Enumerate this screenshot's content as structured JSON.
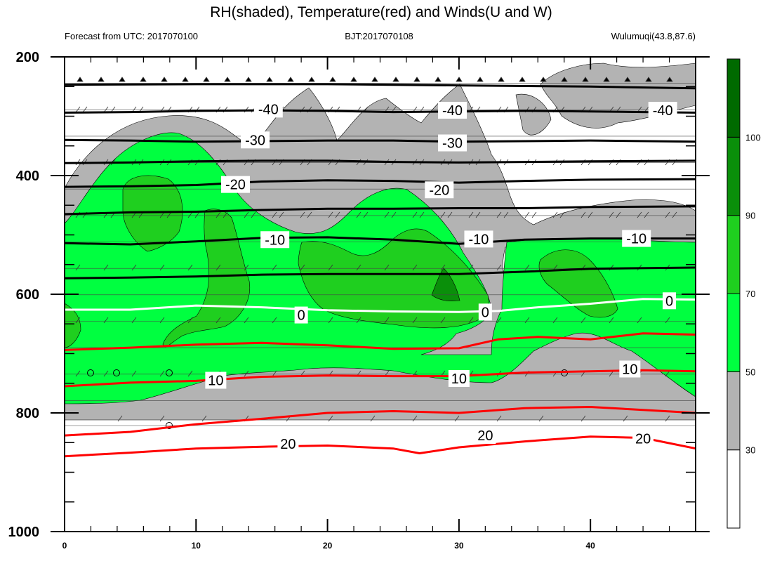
{
  "title": "RH(shaded), Temperature(red) and Winds(U and W)",
  "subtitle_left": "Forecast from UTC: 2017070100",
  "subtitle_center": "BJT:2017070108",
  "subtitle_right": "Wulumuqi(43.8,87.6)",
  "chart_data": {
    "type": "contour",
    "x_axis": {
      "min": 0,
      "max": 48,
      "ticks": [
        0,
        10,
        20,
        30,
        40
      ],
      "label": ""
    },
    "y_axis": {
      "min": 200,
      "max": 1000,
      "ticks": [
        200,
        400,
        600,
        800,
        1000
      ],
      "inverted": true,
      "label": ""
    },
    "colorbar": {
      "levels": [
        30,
        50,
        70,
        90,
        100
      ],
      "colors": [
        "#ffffff",
        "#b3b3b3",
        "#00ff40",
        "#1fcf1f",
        "#0a8f0a",
        "#006a00"
      ],
      "tick_labels": [
        "30",
        "50",
        "70",
        "90",
        "100"
      ]
    },
    "temperature_contours": [
      {
        "value": -40,
        "color": "#000000",
        "points": [
          [
            0,
            247
          ],
          [
            10,
            246
          ],
          [
            20,
            246
          ],
          [
            30,
            248
          ],
          [
            40,
            250
          ],
          [
            48,
            253
          ]
        ]
      },
      {
        "value": -40,
        "color": "#000000",
        "points": [
          [
            0,
            294
          ],
          [
            5,
            293
          ],
          [
            10,
            291
          ],
          [
            15,
            290
          ],
          [
            20,
            291
          ],
          [
            25,
            293
          ],
          [
            30,
            292
          ],
          [
            35,
            291
          ],
          [
            40,
            292
          ],
          [
            44,
            293
          ],
          [
            48,
            294
          ]
        ]
      },
      {
        "value": -30,
        "color": "#000000",
        "points": [
          [
            0,
            340
          ],
          [
            5,
            341
          ],
          [
            10,
            343
          ],
          [
            15,
            342
          ],
          [
            20,
            341
          ],
          [
            25,
            341
          ],
          [
            30,
            343
          ],
          [
            35,
            342
          ],
          [
            40,
            341
          ],
          [
            48,
            343
          ]
        ]
      },
      {
        "value": -30,
        "color": "#000000",
        "points": [
          [
            0,
            379
          ],
          [
            5,
            378
          ],
          [
            10,
            376
          ],
          [
            15,
            375
          ],
          [
            20,
            375
          ],
          [
            25,
            377
          ],
          [
            30,
            378
          ],
          [
            35,
            377
          ],
          [
            40,
            376
          ],
          [
            48,
            375
          ]
        ]
      },
      {
        "value": -20,
        "color": "#000000",
        "points": [
          [
            0,
            419
          ],
          [
            5,
            418
          ],
          [
            10,
            416
          ],
          [
            15,
            410
          ],
          [
            20,
            408
          ],
          [
            25,
            409
          ],
          [
            30,
            412
          ],
          [
            35,
            409
          ],
          [
            40,
            407
          ],
          [
            48,
            406
          ]
        ]
      },
      {
        "value": -20,
        "color": "#000000",
        "points": [
          [
            0,
            465
          ],
          [
            5,
            462
          ],
          [
            10,
            461
          ],
          [
            15,
            458
          ],
          [
            20,
            456
          ],
          [
            25,
            456
          ],
          [
            30,
            455
          ],
          [
            35,
            455
          ],
          [
            40,
            453
          ],
          [
            48,
            452
          ]
        ]
      },
      {
        "value": -10,
        "color": "#000000",
        "points": [
          [
            0,
            514
          ],
          [
            5,
            516
          ],
          [
            10,
            511
          ],
          [
            15,
            505
          ],
          [
            20,
            504
          ],
          [
            25,
            508
          ],
          [
            30,
            515
          ],
          [
            35,
            508
          ],
          [
            40,
            506
          ],
          [
            48,
            506
          ]
        ]
      },
      {
        "value": -10,
        "color": "#000000",
        "points": [
          [
            0,
            573
          ],
          [
            5,
            572
          ],
          [
            10,
            570
          ],
          [
            15,
            567
          ],
          [
            20,
            566
          ],
          [
            25,
            566
          ],
          [
            30,
            566
          ],
          [
            35,
            562
          ],
          [
            40,
            557
          ],
          [
            48,
            555
          ]
        ]
      },
      {
        "value": 0,
        "color": "#ffffff",
        "points": [
          [
            0,
            626
          ],
          [
            5,
            626
          ],
          [
            10,
            619
          ],
          [
            15,
            622
          ],
          [
            20,
            627
          ],
          [
            25,
            629
          ],
          [
            30,
            630
          ],
          [
            33,
            628
          ],
          [
            36,
            622
          ],
          [
            40,
            616
          ],
          [
            44,
            608
          ],
          [
            48,
            609
          ]
        ]
      },
      {
        "value": 10,
        "color": "#ff0000",
        "points": [
          [
            0,
            694
          ],
          [
            5,
            690
          ],
          [
            10,
            685
          ],
          [
            15,
            682
          ],
          [
            20,
            686
          ],
          [
            25,
            692
          ],
          [
            30,
            691
          ],
          [
            33,
            676
          ],
          [
            36,
            672
          ],
          [
            40,
            676
          ],
          [
            44,
            666
          ],
          [
            48,
            668
          ]
        ]
      },
      {
        "value": 10,
        "color": "#ff0000",
        "points": [
          [
            0,
            755
          ],
          [
            5,
            749
          ],
          [
            10,
            746
          ],
          [
            15,
            739
          ],
          [
            20,
            737
          ],
          [
            25,
            738
          ],
          [
            30,
            738
          ],
          [
            35,
            732
          ],
          [
            40,
            730
          ],
          [
            44,
            728
          ],
          [
            48,
            730
          ]
        ]
      },
      {
        "value": 20,
        "color": "#ff0000",
        "points": [
          [
            0,
            838
          ],
          [
            5,
            832
          ],
          [
            10,
            819
          ],
          [
            15,
            810
          ],
          [
            20,
            800
          ],
          [
            25,
            797
          ],
          [
            30,
            800
          ],
          [
            35,
            792
          ],
          [
            40,
            790
          ],
          [
            44,
            795
          ],
          [
            48,
            800
          ]
        ]
      },
      {
        "value": 20,
        "color": "#ff0000",
        "points": [
          [
            0,
            873
          ],
          [
            5,
            867
          ],
          [
            10,
            860
          ],
          [
            15,
            857
          ],
          [
            20,
            855
          ],
          [
            25,
            860
          ],
          [
            27,
            868
          ],
          [
            30,
            858
          ],
          [
            35,
            848
          ],
          [
            40,
            840
          ],
          [
            44,
            842
          ],
          [
            48,
            860
          ]
        ]
      }
    ],
    "contour_labels": [
      {
        "text": "-40",
        "x": 15.5,
        "y": 288
      },
      {
        "text": "-40",
        "x": 29.5,
        "y": 290
      },
      {
        "text": "-40",
        "x": 45.5,
        "y": 290
      },
      {
        "text": "-30",
        "x": 14.5,
        "y": 340
      },
      {
        "text": "-30",
        "x": 29.5,
        "y": 345
      },
      {
        "text": "-20",
        "x": 13,
        "y": 415
      },
      {
        "text": "-20",
        "x": 28.5,
        "y": 424
      },
      {
        "text": "-10",
        "x": 16,
        "y": 508
      },
      {
        "text": "-10",
        "x": 31.5,
        "y": 507
      },
      {
        "text": "-10",
        "x": 43.5,
        "y": 506
      },
      {
        "text": "0",
        "x": 18,
        "y": 635
      },
      {
        "text": "0",
        "x": 32,
        "y": 630
      },
      {
        "text": "0",
        "x": 46,
        "y": 611
      },
      {
        "text": "10",
        "x": 11.5,
        "y": 745
      },
      {
        "text": "10",
        "x": 30,
        "y": 742
      },
      {
        "text": "10",
        "x": 43,
        "y": 726
      },
      {
        "text": "20",
        "x": 17,
        "y": 852
      },
      {
        "text": "20",
        "x": 32,
        "y": 838
      },
      {
        "text": "20",
        "x": 44,
        "y": 843
      }
    ]
  }
}
